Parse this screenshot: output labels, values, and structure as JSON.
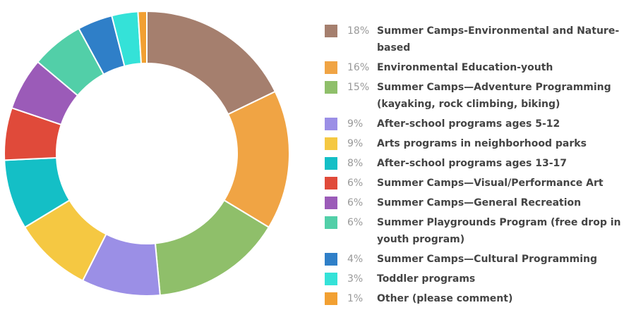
{
  "chart_data": {
    "type": "donut",
    "categories": [
      "Summer Camps-Environmental and Nature-based",
      "Environmental Education-youth",
      "Summer Camps—Adventure Programming (kayaking, rock climbing, biking)",
      "After-school programs ages 5-12",
      "Arts programs in neighborhood parks",
      "After-school programs ages 13-17",
      "Summer Camps—Visual/Performance Art",
      "Summer Camps—General Recreation",
      "Summer Playgrounds Program (free drop in youth program)",
      "Summer Camps—Cultural Programming",
      "Toddler programs",
      "Other (please comment)"
    ],
    "values": [
      18,
      16,
      15,
      9,
      9,
      8,
      6,
      6,
      6,
      4,
      3,
      1
    ],
    "value_labels": [
      "18%",
      "16%",
      "15%",
      "9%",
      "9%",
      "8%",
      "6%",
      "6%",
      "6%",
      "4%",
      "3%",
      "1%"
    ],
    "colors": [
      "#a57f6e",
      "#f0a444",
      "#8fbf6a",
      "#9b8fe6",
      "#f5c842",
      "#14bfc6",
      "#e04a3a",
      "#9b5bb8",
      "#52cfa8",
      "#2f7fc8",
      "#34e2d8",
      "#f2a032"
    ],
    "legend": "right"
  }
}
